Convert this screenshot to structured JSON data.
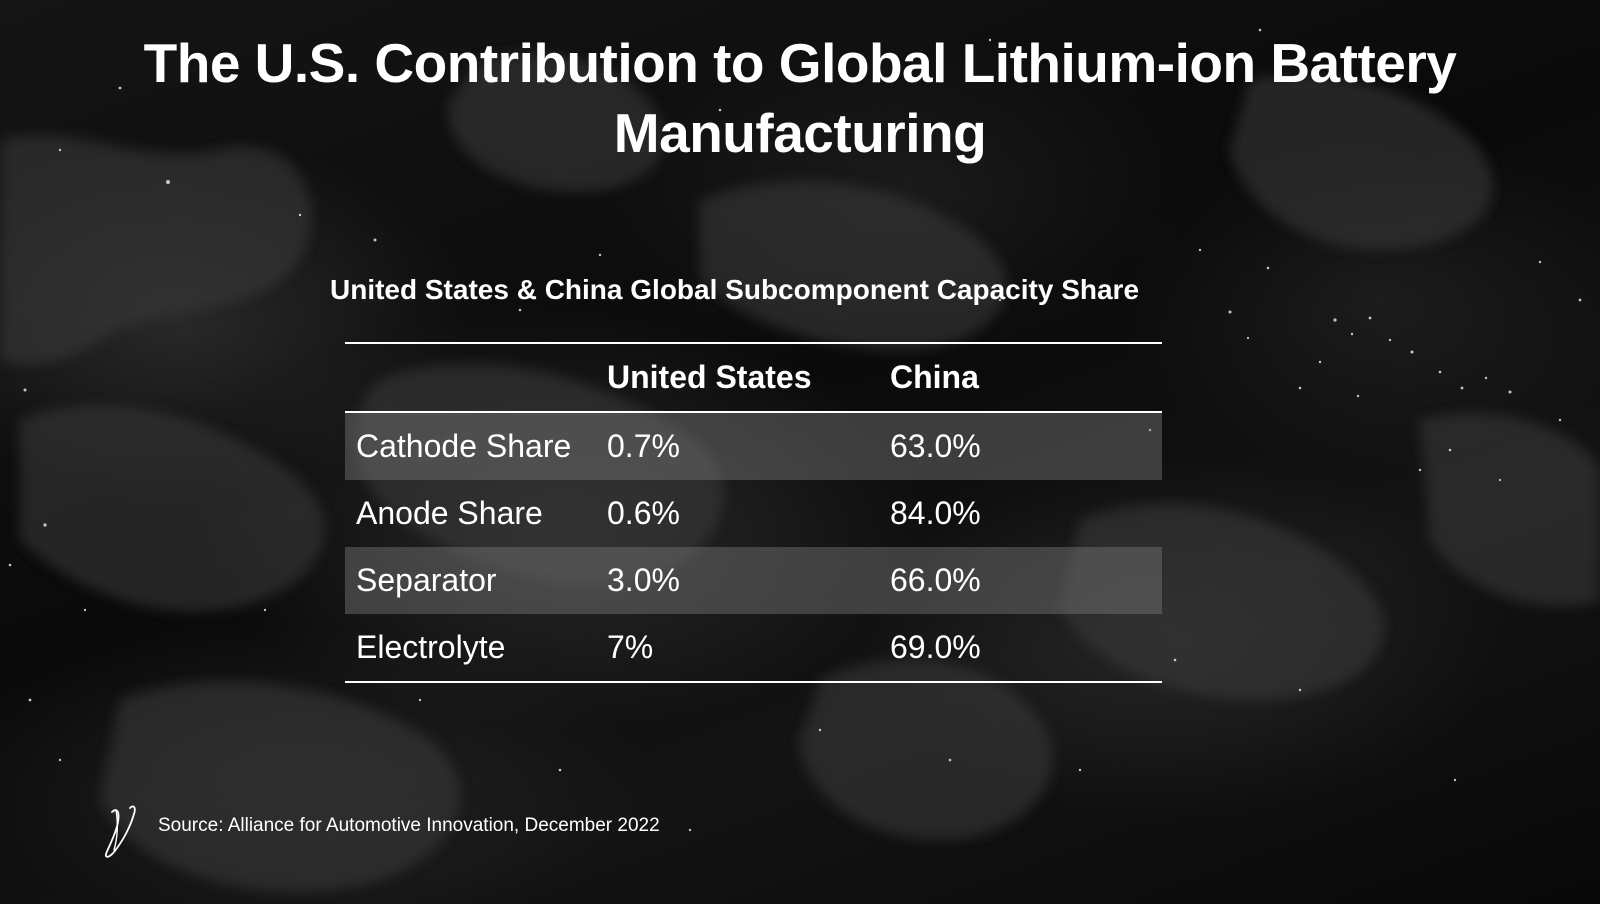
{
  "slide": {
    "title": "The U.S. Contribution to Global Lithium-ion Battery Manufacturing",
    "table_title": "United States & China Global Subcomponent Capacity Share",
    "table": {
      "columns": [
        "",
        "United States",
        "China"
      ],
      "rows": [
        {
          "label": "Cathode Share",
          "us": "0.7%",
          "china": "63.0%"
        },
        {
          "label": "Anode Share",
          "us": "0.6%",
          "china": "84.0%"
        },
        {
          "label": "Separator",
          "us": "3.0%",
          "china": "66.0%"
        },
        {
          "label": "Electrolyte",
          "us": "7%",
          "china": "69.0%"
        }
      ]
    },
    "source": "Source: Alliance for Automotive Innovation, December 2022",
    "logo_icon": "signature-logo-icon"
  }
}
